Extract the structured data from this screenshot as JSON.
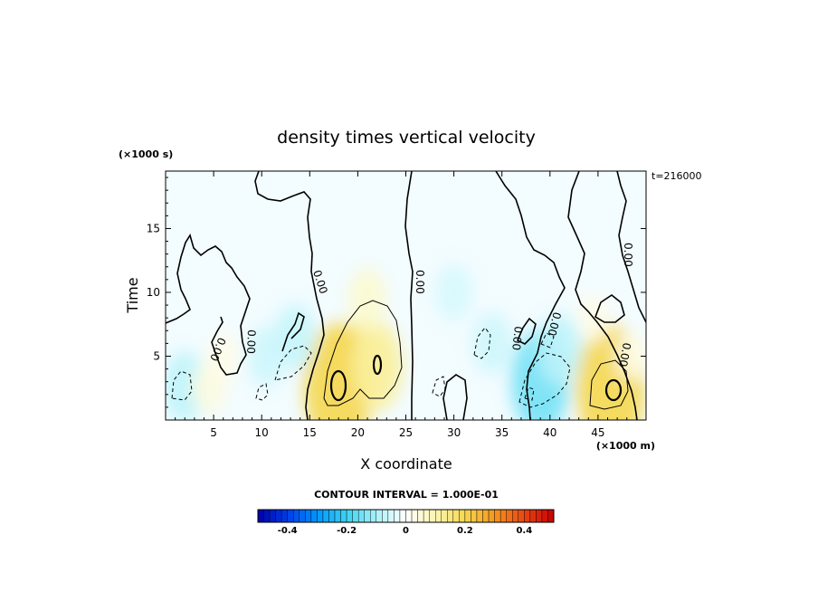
{
  "chart_data": {
    "type": "heatmap",
    "title": "density times vertical velocity",
    "xlabel": "X coordinate",
    "ylabel": "Time",
    "x_unit_label": "(×1000 m)",
    "y_unit_label": "(×1000 s)",
    "time_label": "t=216000",
    "xlim": [
      0,
      50
    ],
    "ylim": [
      0,
      19.5
    ],
    "x_ticks": [
      5,
      10,
      15,
      20,
      25,
      30,
      35,
      40,
      45
    ],
    "y_ticks": [
      5,
      10,
      15
    ],
    "contour_interval_text": "CONTOUR INTERVAL = 1.000E-01",
    "contour_labels": [
      "0.00",
      "0.00",
      "0.00",
      "0.00",
      "0.00",
      "0.00",
      "0.00",
      "0.00"
    ],
    "colorbar": {
      "min": -0.5,
      "max": 0.5,
      "ticks": [
        -0.4,
        -0.2,
        0,
        0.2,
        0.4
      ],
      "tick_labels": [
        "-0.4",
        "-0.2",
        "0",
        "0.2",
        "0.4"
      ],
      "negative_color": "#0000aa",
      "neutral_color": "#ffffff",
      "positive_color": "#cc0000"
    },
    "features": [
      {
        "x": 20.0,
        "y": 4.5,
        "value": 0.12
      },
      {
        "x": 18.0,
        "y": 2.6,
        "value": 0.2
      },
      {
        "x": 22.0,
        "y": 4.2,
        "value": 0.12
      },
      {
        "x": 21.0,
        "y": 9.5,
        "value": 0.06
      },
      {
        "x": 46.3,
        "y": 2.5,
        "value": 0.2
      },
      {
        "x": 39.0,
        "y": 3.0,
        "value": -0.15
      },
      {
        "x": 41.0,
        "y": 5.5,
        "value": -0.08
      },
      {
        "x": 34.0,
        "y": 6.0,
        "value": -0.06
      },
      {
        "x": 30.0,
        "y": 10.0,
        "value": -0.05
      },
      {
        "x": 13.5,
        "y": 6.5,
        "value": -0.07
      },
      {
        "x": 10.5,
        "y": 5.0,
        "value": -0.06
      },
      {
        "x": 2.0,
        "y": 2.6,
        "value": -0.08
      },
      {
        "x": 4.5,
        "y": 2.5,
        "value": 0.04
      },
      {
        "x": 6.0,
        "y": 5.0,
        "value": 0.03
      },
      {
        "x": 44.5,
        "y": 8.0,
        "value": 0.03
      },
      {
        "x": 48.5,
        "y": 5.0,
        "value": 0.03
      }
    ]
  }
}
